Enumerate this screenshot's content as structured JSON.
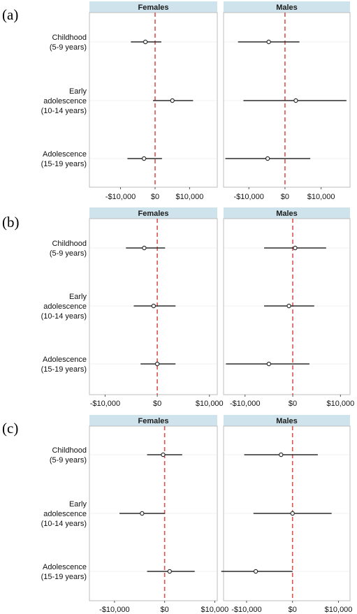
{
  "chart_data": [
    {
      "type": "scatter",
      "panel_label": "(a)",
      "facets": [
        "Females",
        "Males"
      ],
      "categories": [
        "Childhood\n(5-9 years)",
        "Early\nadolescence\n(10-14 years)",
        "Adolescence\n(15-19 years)"
      ],
      "x_ticks": [
        [
          "-$10,000",
          "$0",
          "$10,000"
        ],
        [
          "-$10,000",
          "$0",
          "$10,000"
        ]
      ],
      "xlims": [
        [
          -19000,
          18000
        ],
        [
          -17000,
          18000
        ]
      ],
      "tick_values": [
        -10000,
        0,
        10000
      ],
      "reference_line": 0,
      "series": [
        {
          "name": "Females",
          "estimates": [
            -2800,
            5000,
            -3200
          ],
          "lower": [
            -7000,
            -600,
            -8000
          ],
          "upper": [
            1800,
            11000,
            2000
          ]
        },
        {
          "name": "Males",
          "estimates": [
            -4500,
            3000,
            -4800
          ],
          "lower": [
            -13000,
            -11500,
            -16500
          ],
          "upper": [
            4000,
            17000,
            7000
          ]
        }
      ]
    },
    {
      "type": "scatter",
      "panel_label": "(b)",
      "facets": [
        "Females",
        "Males"
      ],
      "categories": [
        "Childhood\n(5-9 years)",
        "Early\nadolescence\n(10-14 years)",
        "Adolescence\n(15-19 years)"
      ],
      "x_ticks": [
        [
          "-$10,000",
          "$0",
          "$10,000"
        ],
        [
          "-$10,000",
          "$0",
          "$10,000"
        ]
      ],
      "xlims": [
        [
          -13000,
          11500
        ],
        [
          -14500,
          12000
        ]
      ],
      "tick_values": [
        -10000,
        0,
        10000
      ],
      "reference_line": 0,
      "series": [
        {
          "name": "Females",
          "estimates": [
            -2500,
            -700,
            0
          ],
          "lower": [
            -6000,
            -4500,
            -3200
          ],
          "upper": [
            1500,
            3500,
            3500
          ]
        },
        {
          "name": "Males",
          "estimates": [
            500,
            -800,
            -5000
          ],
          "lower": [
            -6000,
            -6000,
            -14000
          ],
          "upper": [
            7000,
            4500,
            3500
          ]
        }
      ]
    },
    {
      "type": "scatter",
      "panel_label": "(c)",
      "facets": [
        "Females",
        "Males"
      ],
      "categories": [
        "Childhood\n(5-9 years)",
        "Early\nadolescence\n(10-14 years)",
        "Adolescence\n(15-19 years)"
      ],
      "x_ticks": [
        [
          "-$10,000",
          "$0",
          "$10,000"
        ],
        [
          "-$10,000",
          "$0",
          "$10,000"
        ]
      ],
      "xlims": [
        [
          -15000,
          10500
        ],
        [
          -15000,
          12500
        ]
      ],
      "tick_values": [
        -10000,
        0,
        10000
      ],
      "reference_line": 0,
      "series": [
        {
          "name": "Females",
          "estimates": [
            -300,
            -4500,
            1000
          ],
          "lower": [
            -3500,
            -9000,
            -3500
          ],
          "upper": [
            3500,
            0,
            6000
          ]
        },
        {
          "name": "Males",
          "estimates": [
            -2500,
            0,
            -8000
          ],
          "lower": [
            -10500,
            -8500,
            -15500
          ],
          "upper": [
            5500,
            8500,
            0
          ]
        }
      ]
    }
  ],
  "colors": {
    "strip": "#cfe3ec",
    "panel_border": "#bdbdbd",
    "gridline": "#f0f0f0",
    "reference_line": "#d9534f",
    "error_bar": "#2b2b2b",
    "point_fill": "#ffffff"
  }
}
